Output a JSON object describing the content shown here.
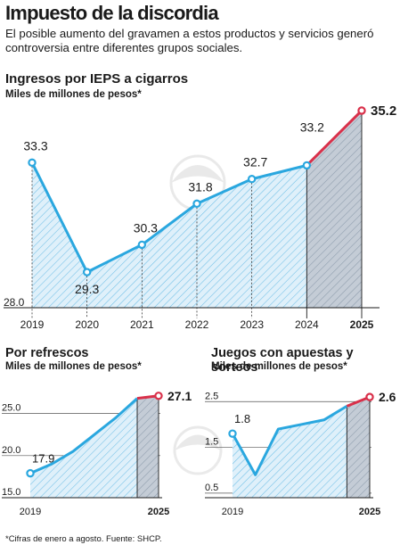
{
  "header": {
    "title": "Impuesto de la discordia",
    "subtitle": "El posible aumento del gravamen a estos productos y servicios generó controversia entre diferentes grupos sociales."
  },
  "footnote": "*Cifras de enero a agosto. Fuente: SHCP.",
  "colors": {
    "line": "#2aa7df",
    "line_projected": "#d9304a",
    "fill_hatch": "#2aa7df",
    "fill_bg": "#dff0fa",
    "projected_bg": "#c4ccd6",
    "axis": "#1a1a1a",
    "grid": "#555555"
  },
  "chart_data": [
    {
      "type": "area",
      "title": "Ingresos por IEPS a cigarros",
      "ylabel": "Miles de millones de pesos*",
      "x": [
        "2019",
        "2020",
        "2021",
        "2022",
        "2023",
        "2024",
        "2025"
      ],
      "values": [
        33.3,
        29.3,
        30.3,
        31.8,
        32.7,
        33.2,
        35.2
      ],
      "value_labels": [
        "33.3",
        "29.3",
        "30.3",
        "31.8",
        "32.7",
        "33.2",
        "35.2"
      ],
      "ytick_labels": [
        "28.0"
      ],
      "ylim": [
        28.0,
        35.2
      ],
      "projected_from_index": 5
    },
    {
      "type": "area",
      "title": "Por refrescos",
      "ylabel": "Miles de millones de pesos*",
      "x": [
        "2019",
        "2020",
        "2021",
        "2022",
        "2023",
        "2024",
        "2025"
      ],
      "xtick_labels": [
        "2019",
        "",
        "",
        "",
        "",
        "",
        "2025"
      ],
      "values": [
        17.9,
        19.0,
        20.5,
        22.5,
        24.5,
        26.8,
        27.1
      ],
      "value_labels": [
        "17.9",
        "",
        "",
        "",
        "",
        "",
        "27.1"
      ],
      "yticks": [
        15.0,
        20.0,
        25.0
      ],
      "ytick_labels": [
        "15.0",
        "20.0",
        "25.0"
      ],
      "ylim": [
        15.0,
        27.5
      ],
      "projected_from_index": 5
    },
    {
      "type": "area",
      "title": "Juegos con apuestas y sorteos",
      "ylabel": "Miles de millones de pesos*",
      "x": [
        "2019",
        "2020",
        "2021",
        "2022",
        "2023",
        "2024",
        "2025"
      ],
      "xtick_labels": [
        "2019",
        "",
        "",
        "",
        "",
        "",
        "2025"
      ],
      "values": [
        1.8,
        0.9,
        1.9,
        2.0,
        2.1,
        2.4,
        2.6
      ],
      "value_labels": [
        "1.8",
        "",
        "",
        "",
        "",
        "",
        "2.6"
      ],
      "yticks": [
        0.5,
        1.5,
        2.5
      ],
      "ytick_labels": [
        "0.5",
        "1.5",
        "2.5"
      ],
      "ylim": [
        0.4,
        2.7
      ],
      "projected_from_index": 5
    }
  ]
}
